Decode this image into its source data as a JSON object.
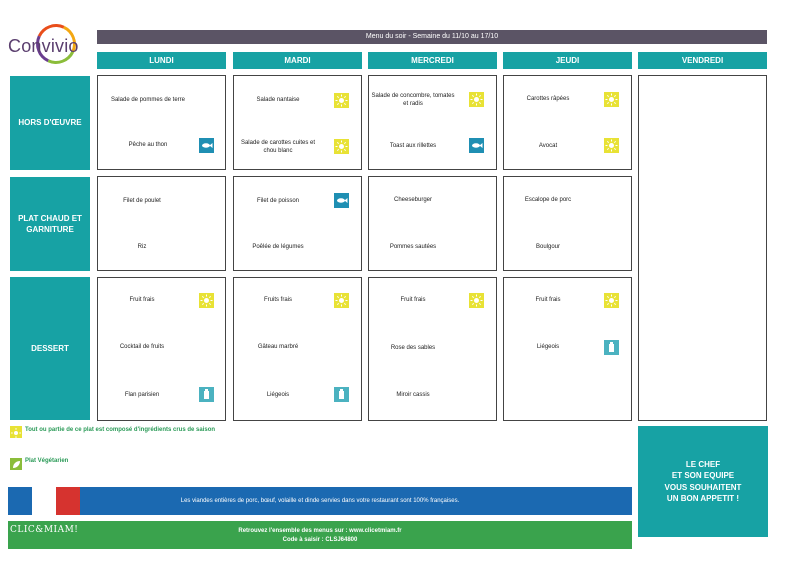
{
  "brand": {
    "name": "Convivio"
  },
  "title": "Menu du soir - Semaine du 11/10 au 17/10",
  "days": [
    "LUNDI",
    "MARDI",
    "MERCREDI",
    "JEUDI",
    "VENDREDI"
  ],
  "rows": [
    "HORS D'ŒUVRE",
    "PLAT CHAUD ET GARNITURE",
    "DESSERT"
  ],
  "menu": {
    "lundi": {
      "hors": [
        {
          "text": "Salade de pommes de terre",
          "icon": "none"
        },
        {
          "text": "Pêche au thon",
          "icon": "fish-icon"
        }
      ],
      "plat": [
        {
          "text": "Filet de poulet",
          "icon": "none"
        },
        {
          "text": "Riz",
          "icon": "none"
        }
      ],
      "dessert": [
        {
          "text": "Fruit frais",
          "icon": "sun-icon"
        },
        {
          "text": "Cocktail de fruits",
          "icon": "none"
        },
        {
          "text": "Flan parisien",
          "icon": "milk-icon"
        }
      ]
    },
    "mardi": {
      "hors": [
        {
          "text": "Salade nantaise",
          "icon": "sun-icon"
        },
        {
          "text": "Salade de carottes cuites et chou blanc",
          "icon": "sun-icon"
        }
      ],
      "plat": [
        {
          "text": "Filet de poisson",
          "icon": "fish-icon"
        },
        {
          "text": "Poêlée de légumes",
          "icon": "none"
        }
      ],
      "dessert": [
        {
          "text": "Fruits frais",
          "icon": "sun-icon"
        },
        {
          "text": "Gâteau marbré",
          "icon": "none"
        },
        {
          "text": "Liégeois",
          "icon": "milk-icon"
        }
      ]
    },
    "mercredi": {
      "hors": [
        {
          "text": "Salade de concombre, tomates et radis",
          "icon": "sun-icon"
        },
        {
          "text": "Toast aux rillettes",
          "icon": "fish-icon"
        }
      ],
      "plat": [
        {
          "text": "Cheeseburger",
          "icon": "none"
        },
        {
          "text": "Pommes sautées",
          "icon": "none"
        }
      ],
      "dessert": [
        {
          "text": "Fruit frais",
          "icon": "sun-icon"
        },
        {
          "text": "Rose des sables",
          "icon": "none"
        },
        {
          "text": "Miroir cassis",
          "icon": "none"
        }
      ]
    },
    "jeudi": {
      "hors": [
        {
          "text": "Carottes râpées",
          "icon": "sun-icon"
        },
        {
          "text": "Avocat",
          "icon": "sun-icon"
        }
      ],
      "plat": [
        {
          "text": "Escalope de porc",
          "icon": "none"
        },
        {
          "text": "Boulgour",
          "icon": "none"
        }
      ],
      "dessert": [
        {
          "text": "Fruit frais",
          "icon": "sun-icon"
        },
        {
          "text": "Liégeois",
          "icon": "milk-icon"
        }
      ]
    }
  },
  "legend": {
    "seasonal": "Tout ou partie de ce plat est composé d'ingrédients crus de saison",
    "vegetarian": "Plat Végétarien"
  },
  "chef_message": [
    "LE CHEF",
    "ET SON EQUIPE",
    "VOUS SOUHAITENT",
    "UN BON APPETIT !"
  ],
  "meat_notice": "Les viandes entières de porc, bœuf, volaille et dinde servies dans votre restaurant sont 100% françaises.",
  "footer": {
    "brand": "CLIC&MIAM!",
    "line1": "Retrouvez l'ensemble des menus sur : www.clicetmiam.fr",
    "line2": "Code à saisir : CLSJ64800"
  },
  "colors": {
    "teal": "#17a2a4",
    "title_bar": "#5b5465",
    "notice_blue": "#1b69b1",
    "footer_green": "#3aa34d",
    "sun": "#e8e235"
  }
}
